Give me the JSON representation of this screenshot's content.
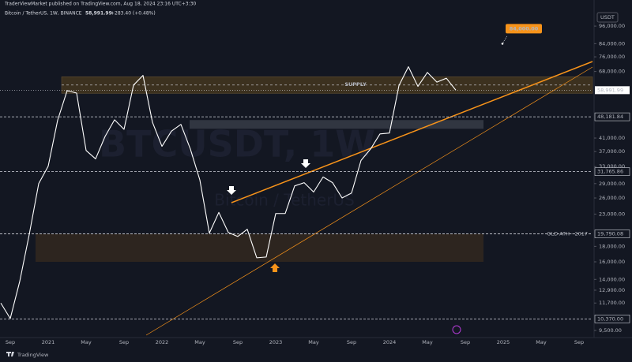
{
  "chart_data": {
    "type": "line",
    "log_scale": true,
    "grid": false,
    "publisher": "TraderViewMarket published on TradingView.com, Aug 18, 2024 23:16 UTC+3:30",
    "title": "Bitcoin / TetherUS, 1W, BINANCE",
    "header_price": "58,991.99",
    "header_change": "+283.40 (+0.48%)",
    "currency": "USDT",
    "watermark": "BTCUSDT, 1W",
    "watermark_sub": "Bitcoin / TetherUS",
    "brand": "TradingView",
    "color": "#ffffff",
    "categories": [
      null,
      "Sep",
      null,
      null,
      null,
      "2021",
      null,
      null,
      null,
      "May",
      null,
      null,
      null,
      "Sep",
      null,
      null,
      null,
      "2022",
      null,
      null,
      null,
      "May",
      null,
      null,
      null,
      "Sep",
      null,
      null,
      null,
      "2023",
      null,
      null,
      null,
      "May",
      null,
      null,
      null,
      "Sep",
      null,
      null,
      null,
      "2024",
      null,
      null,
      null,
      "May",
      null,
      null,
      null,
      "Sep",
      null,
      null,
      null,
      "2025",
      null,
      null,
      null,
      "May",
      null,
      null,
      null,
      "Sep",
      null
    ],
    "values": [
      11700,
      10400,
      13800,
      19700,
      29000,
      33100,
      47000,
      58800,
      57700,
      37300,
      35000,
      41500,
      47100,
      43800,
      61300,
      66000,
      46200,
      38500,
      43200,
      45500,
      37700,
      29800,
      19900,
      23300,
      20000,
      19400,
      20500,
      16500,
      16600,
      23100,
      23100,
      28500,
      29200,
      27200,
      30500,
      29200,
      26000,
      27000,
      34600,
      37700,
      42300,
      42600,
      61100,
      70500,
      60700,
      67500,
      62700,
      64600,
      58991.99,
      null,
      null,
      null,
      null,
      null,
      null,
      null,
      null,
      null,
      null,
      null,
      null,
      null,
      null
    ],
    "ylim": [
      9000,
      107000
    ],
    "yticks": [
      {
        "value": 96000,
        "label": "96,000.00"
      },
      {
        "value": 84000,
        "label": "84,000.00"
      },
      {
        "value": 76000,
        "label": "76,000.00"
      },
      {
        "value": 68000,
        "label": "68,000.00"
      },
      {
        "value": 41000,
        "label": "41,000.00"
      },
      {
        "value": 37000,
        "label": "37,000.00"
      },
      {
        "value": 33000,
        "label": "33,000.00"
      },
      {
        "value": 29000,
        "label": "29,000.00"
      },
      {
        "value": 26000,
        "label": "26,000.00"
      },
      {
        "value": 23000,
        "label": "23,000.00"
      },
      {
        "value": 18000,
        "label": "18,000.00"
      },
      {
        "value": 16000,
        "label": "16,000.00"
      },
      {
        "value": 14000,
        "label": "14,000.00"
      },
      {
        "value": 12900,
        "label": "12,900.00"
      },
      {
        "value": 11700,
        "label": "11,700.00"
      },
      {
        "value": 9500,
        "label": "9,500.00"
      }
    ],
    "last_price": {
      "value": 58991.99,
      "label": "58,991.99"
    },
    "price_levels": [
      {
        "value": 48181.84,
        "label": "48,181.84"
      },
      {
        "value": 31765.86,
        "label": "31,765.86"
      },
      {
        "value": 19790.08,
        "label": "19,790.08",
        "note": "OLD ATH - 2017"
      },
      {
        "value": 10370,
        "label": "10,370.00"
      }
    ],
    "zones": [
      {
        "label": "SUPPLY",
        "low": 57600,
        "high": 65300
      },
      {
        "low": 44000,
        "high": 47000
      },
      {
        "low": 16000,
        "high": 19800
      }
    ],
    "target": {
      "value": 84000,
      "label": "84,000.00"
    }
  }
}
